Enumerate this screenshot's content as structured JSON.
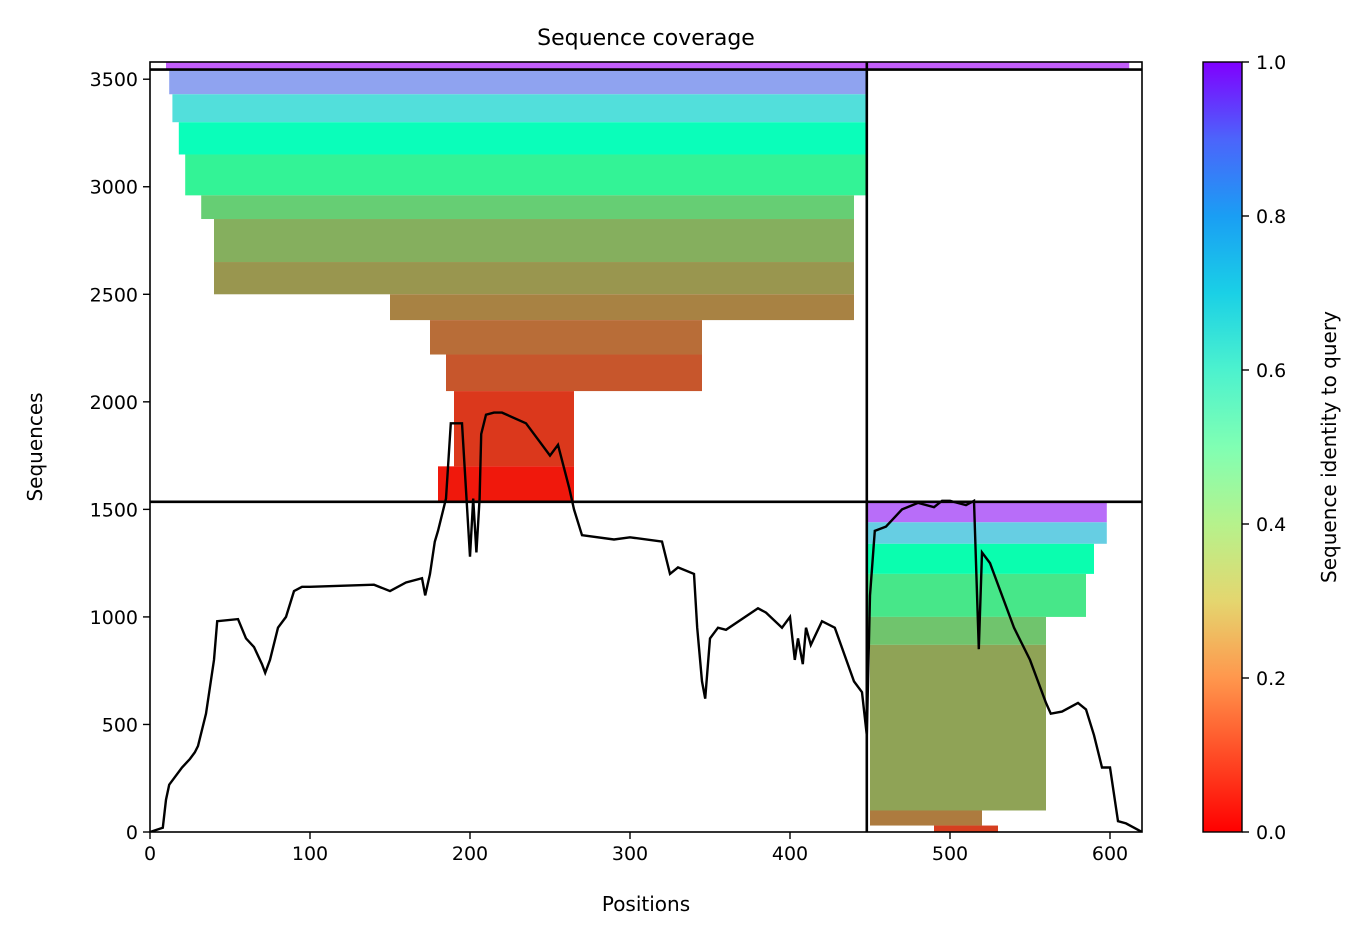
{
  "chart_data": {
    "type": "heatmap",
    "title": "Sequence coverage",
    "xlabel": "Positions",
    "ylabel": "Sequences",
    "xlim": [
      0,
      620
    ],
    "ylim": [
      0,
      3580
    ],
    "xticks": [
      0,
      100,
      200,
      300,
      400,
      500,
      600
    ],
    "yticks": [
      0,
      500,
      1000,
      1500,
      2000,
      2500,
      3000,
      3500
    ],
    "grid": false,
    "colormap": "rainbow_r",
    "colorbar": {
      "label": "Sequence identity to query",
      "range": [
        0,
        1
      ],
      "ticks": [
        "0.0",
        "0.2",
        "0.4",
        "0.6",
        "0.8",
        "1.0"
      ]
    },
    "partition": {
      "x_boundary": 448,
      "y_boundaries": [
        1535,
        3545
      ]
    },
    "coverage_blocks": [
      {
        "x0": 10,
        "x1": 448,
        "y0": 3545,
        "y1": 3580,
        "identity": 0.88
      },
      {
        "x0": 448,
        "x1": 612,
        "y0": 3545,
        "y1": 3580,
        "identity": 0.88
      },
      {
        "x0": 12,
        "x1": 448,
        "y0": 3430,
        "y1": 3545,
        "identity": 0.78
      },
      {
        "x0": 14,
        "x1": 448,
        "y0": 3300,
        "y1": 3430,
        "identity": 0.66
      },
      {
        "x0": 18,
        "x1": 448,
        "y0": 3150,
        "y1": 3300,
        "identity": 0.52
      },
      {
        "x0": 22,
        "x1": 448,
        "y0": 2960,
        "y1": 3150,
        "identity": 0.4
      },
      {
        "x0": 32,
        "x1": 440,
        "y0": 2850,
        "y1": 2960,
        "identity": 0.3
      },
      {
        "x0": 40,
        "x1": 440,
        "y0": 2650,
        "y1": 2850,
        "identity": 0.24
      },
      {
        "x0": 40,
        "x1": 440,
        "y0": 2500,
        "y1": 2650,
        "identity": 0.2
      },
      {
        "x0": 150,
        "x1": 440,
        "y0": 2380,
        "y1": 2500,
        "identity": 0.17
      },
      {
        "x0": 175,
        "x1": 345,
        "y0": 2220,
        "y1": 2380,
        "identity": 0.14
      },
      {
        "x0": 185,
        "x1": 345,
        "y0": 2050,
        "y1": 2220,
        "identity": 0.11
      },
      {
        "x0": 190,
        "x1": 265,
        "y0": 1700,
        "y1": 2050,
        "identity": 0.07
      },
      {
        "x0": 180,
        "x1": 265,
        "y0": 1535,
        "y1": 1700,
        "identity": 0.03
      },
      {
        "x0": 448,
        "x1": 598,
        "y0": 1440,
        "y1": 1535,
        "identity": 0.86
      },
      {
        "x0": 448,
        "x1": 598,
        "y0": 1340,
        "y1": 1440,
        "identity": 0.7
      },
      {
        "x0": 448,
        "x1": 590,
        "y0": 1200,
        "y1": 1340,
        "identity": 0.48
      },
      {
        "x0": 448,
        "x1": 585,
        "y0": 1000,
        "y1": 1200,
        "identity": 0.36
      },
      {
        "x0": 448,
        "x1": 560,
        "y0": 870,
        "y1": 1000,
        "identity": 0.28
      },
      {
        "x0": 450,
        "x1": 560,
        "y0": 100,
        "y1": 870,
        "identity": 0.22
      },
      {
        "x0": 450,
        "x1": 520,
        "y0": 30,
        "y1": 100,
        "identity": 0.16
      },
      {
        "x0": 490,
        "x1": 530,
        "y0": 0,
        "y1": 30,
        "identity": 0.08
      }
    ],
    "coverage_line": {
      "x": [
        0,
        8,
        10,
        12,
        20,
        25,
        28,
        30,
        35,
        40,
        42,
        55,
        60,
        65,
        70,
        72,
        75,
        80,
        85,
        90,
        95,
        100,
        140,
        150,
        160,
        170,
        172,
        175,
        178,
        180,
        185,
        188,
        192,
        195,
        200,
        202,
        204,
        206,
        207,
        210,
        215,
        220,
        235,
        245,
        250,
        255,
        262,
        265,
        270,
        290,
        300,
        320,
        325,
        330,
        340,
        342,
        345,
        347,
        350,
        355,
        360,
        380,
        385,
        395,
        400,
        403,
        405,
        408,
        410,
        413,
        420,
        428,
        440,
        445,
        448,
        450,
        453,
        460,
        470,
        480,
        490,
        495,
        500,
        510,
        515,
        518,
        520,
        525,
        530,
        540,
        550,
        555,
        560,
        563,
        570,
        580,
        585,
        590,
        595,
        598,
        600,
        605,
        610,
        615,
        620
      ],
      "y": [
        0,
        20,
        150,
        220,
        300,
        340,
        370,
        400,
        550,
        800,
        980,
        990,
        900,
        860,
        780,
        740,
        800,
        950,
        1000,
        1120,
        1140,
        1140,
        1150,
        1120,
        1160,
        1180,
        1100,
        1200,
        1350,
        1400,
        1550,
        1900,
        1900,
        1900,
        1280,
        1550,
        1300,
        1550,
        1850,
        1940,
        1950,
        1950,
        1900,
        1800,
        1750,
        1800,
        1600,
        1500,
        1380,
        1360,
        1370,
        1350,
        1200,
        1230,
        1200,
        950,
        700,
        620,
        900,
        950,
        940,
        1040,
        1020,
        950,
        1000,
        800,
        900,
        780,
        950,
        870,
        980,
        950,
        700,
        650,
        450,
        1100,
        1400,
        1420,
        1500,
        1530,
        1510,
        1540,
        1540,
        1520,
        1540,
        850,
        1300,
        1250,
        1150,
        950,
        800,
        700,
        600,
        550,
        560,
        600,
        570,
        450,
        300,
        300,
        300,
        50,
        40,
        20,
        0
      ]
    }
  }
}
